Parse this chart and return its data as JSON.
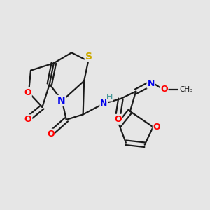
{
  "bg_color": "#e6e6e6",
  "bond_color": "#1a1a1a",
  "atom_colors": {
    "O": "#ff0000",
    "N": "#0000ee",
    "S": "#ccaa00",
    "H": "#4a9a9a"
  },
  "lw": 1.6,
  "figsize": [
    3.0,
    3.0
  ],
  "dpi": 100
}
